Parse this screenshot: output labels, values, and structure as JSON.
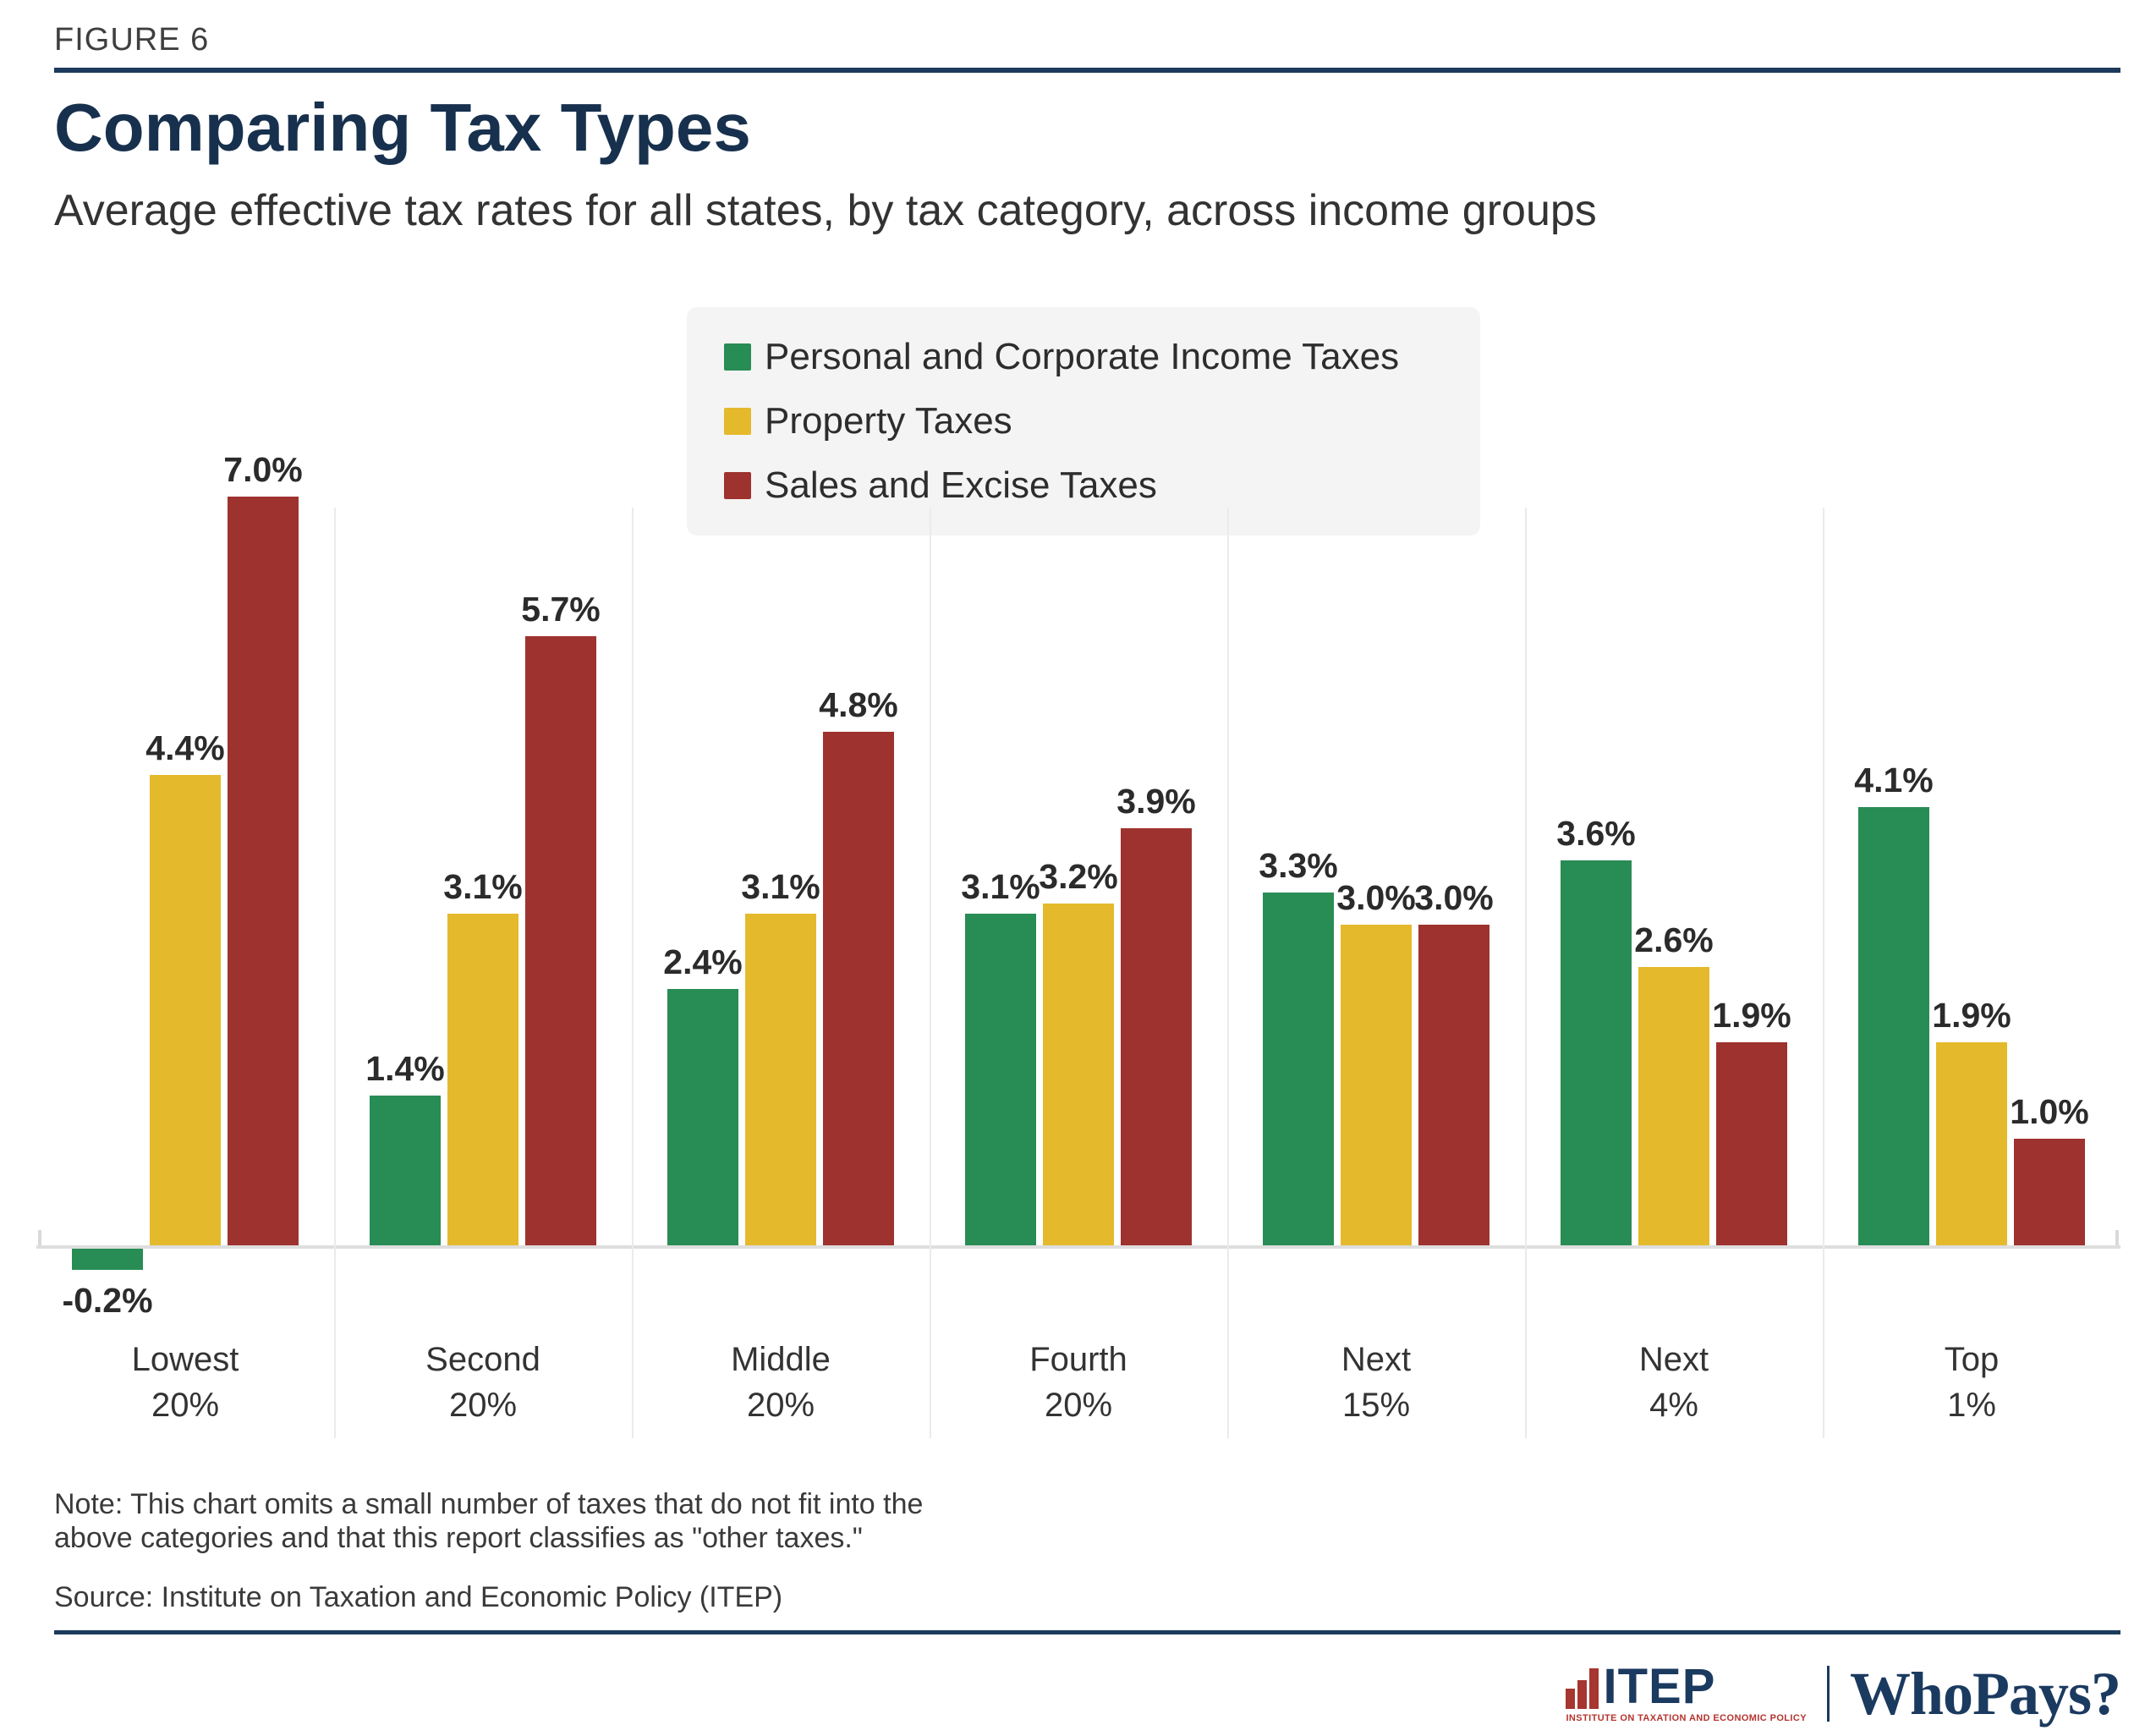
{
  "header": {
    "figure_label": "FIGURE 6",
    "title": "Comparing Tax Types",
    "subtitle": "Average effective tax rates for all states, by tax category, across income groups"
  },
  "chart_data": {
    "type": "bar",
    "categories": [
      "Lowest\n20%",
      "Second\n20%",
      "Middle\n20%",
      "Fourth\n20%",
      "Next\n15%",
      "Next\n4%",
      "Top\n1%"
    ],
    "series": [
      {
        "name": "Personal and Corporate Income Taxes",
        "color": "#288c55",
        "values": [
          -0.2,
          1.4,
          2.4,
          3.1,
          3.3,
          3.6,
          4.1
        ]
      },
      {
        "name": "Property Taxes",
        "color": "#e5b92c",
        "values": [
          4.4,
          3.1,
          3.1,
          3.2,
          3.0,
          2.6,
          1.9
        ]
      },
      {
        "name": "Sales and Excise Taxes",
        "color": "#9e322e",
        "values": [
          7.0,
          5.7,
          4.8,
          3.9,
          3.0,
          1.9,
          1.0
        ]
      }
    ],
    "value_suffix": "%",
    "value_decimals": 1,
    "ylim": [
      -0.5,
      7.5
    ],
    "grid": false,
    "legend_position": "top-center",
    "xlabel": "",
    "ylabel": ""
  },
  "footer": {
    "note": [
      "Note: This chart omits a small number of taxes that do not fit into the",
      "above categories and that this report classifies as \"other taxes.\""
    ],
    "source": "Source: Institute on Taxation and Economic Policy (ITEP)",
    "brand": {
      "itep_wordmark": "ITEP",
      "itep_tagline": "INSTITUTE ON TAXATION AND ECONOMIC POLICY",
      "whopays_wordmark": "WhoPays?"
    }
  },
  "colors": {
    "accent_navy": "#1c3a5c",
    "income_green": "#288c55",
    "property_yellow": "#e5b92c",
    "sales_red": "#9e322e",
    "brand_red": "#a6362f",
    "legend_bg": "#f4f4f4",
    "axis_gray": "#dedede"
  }
}
